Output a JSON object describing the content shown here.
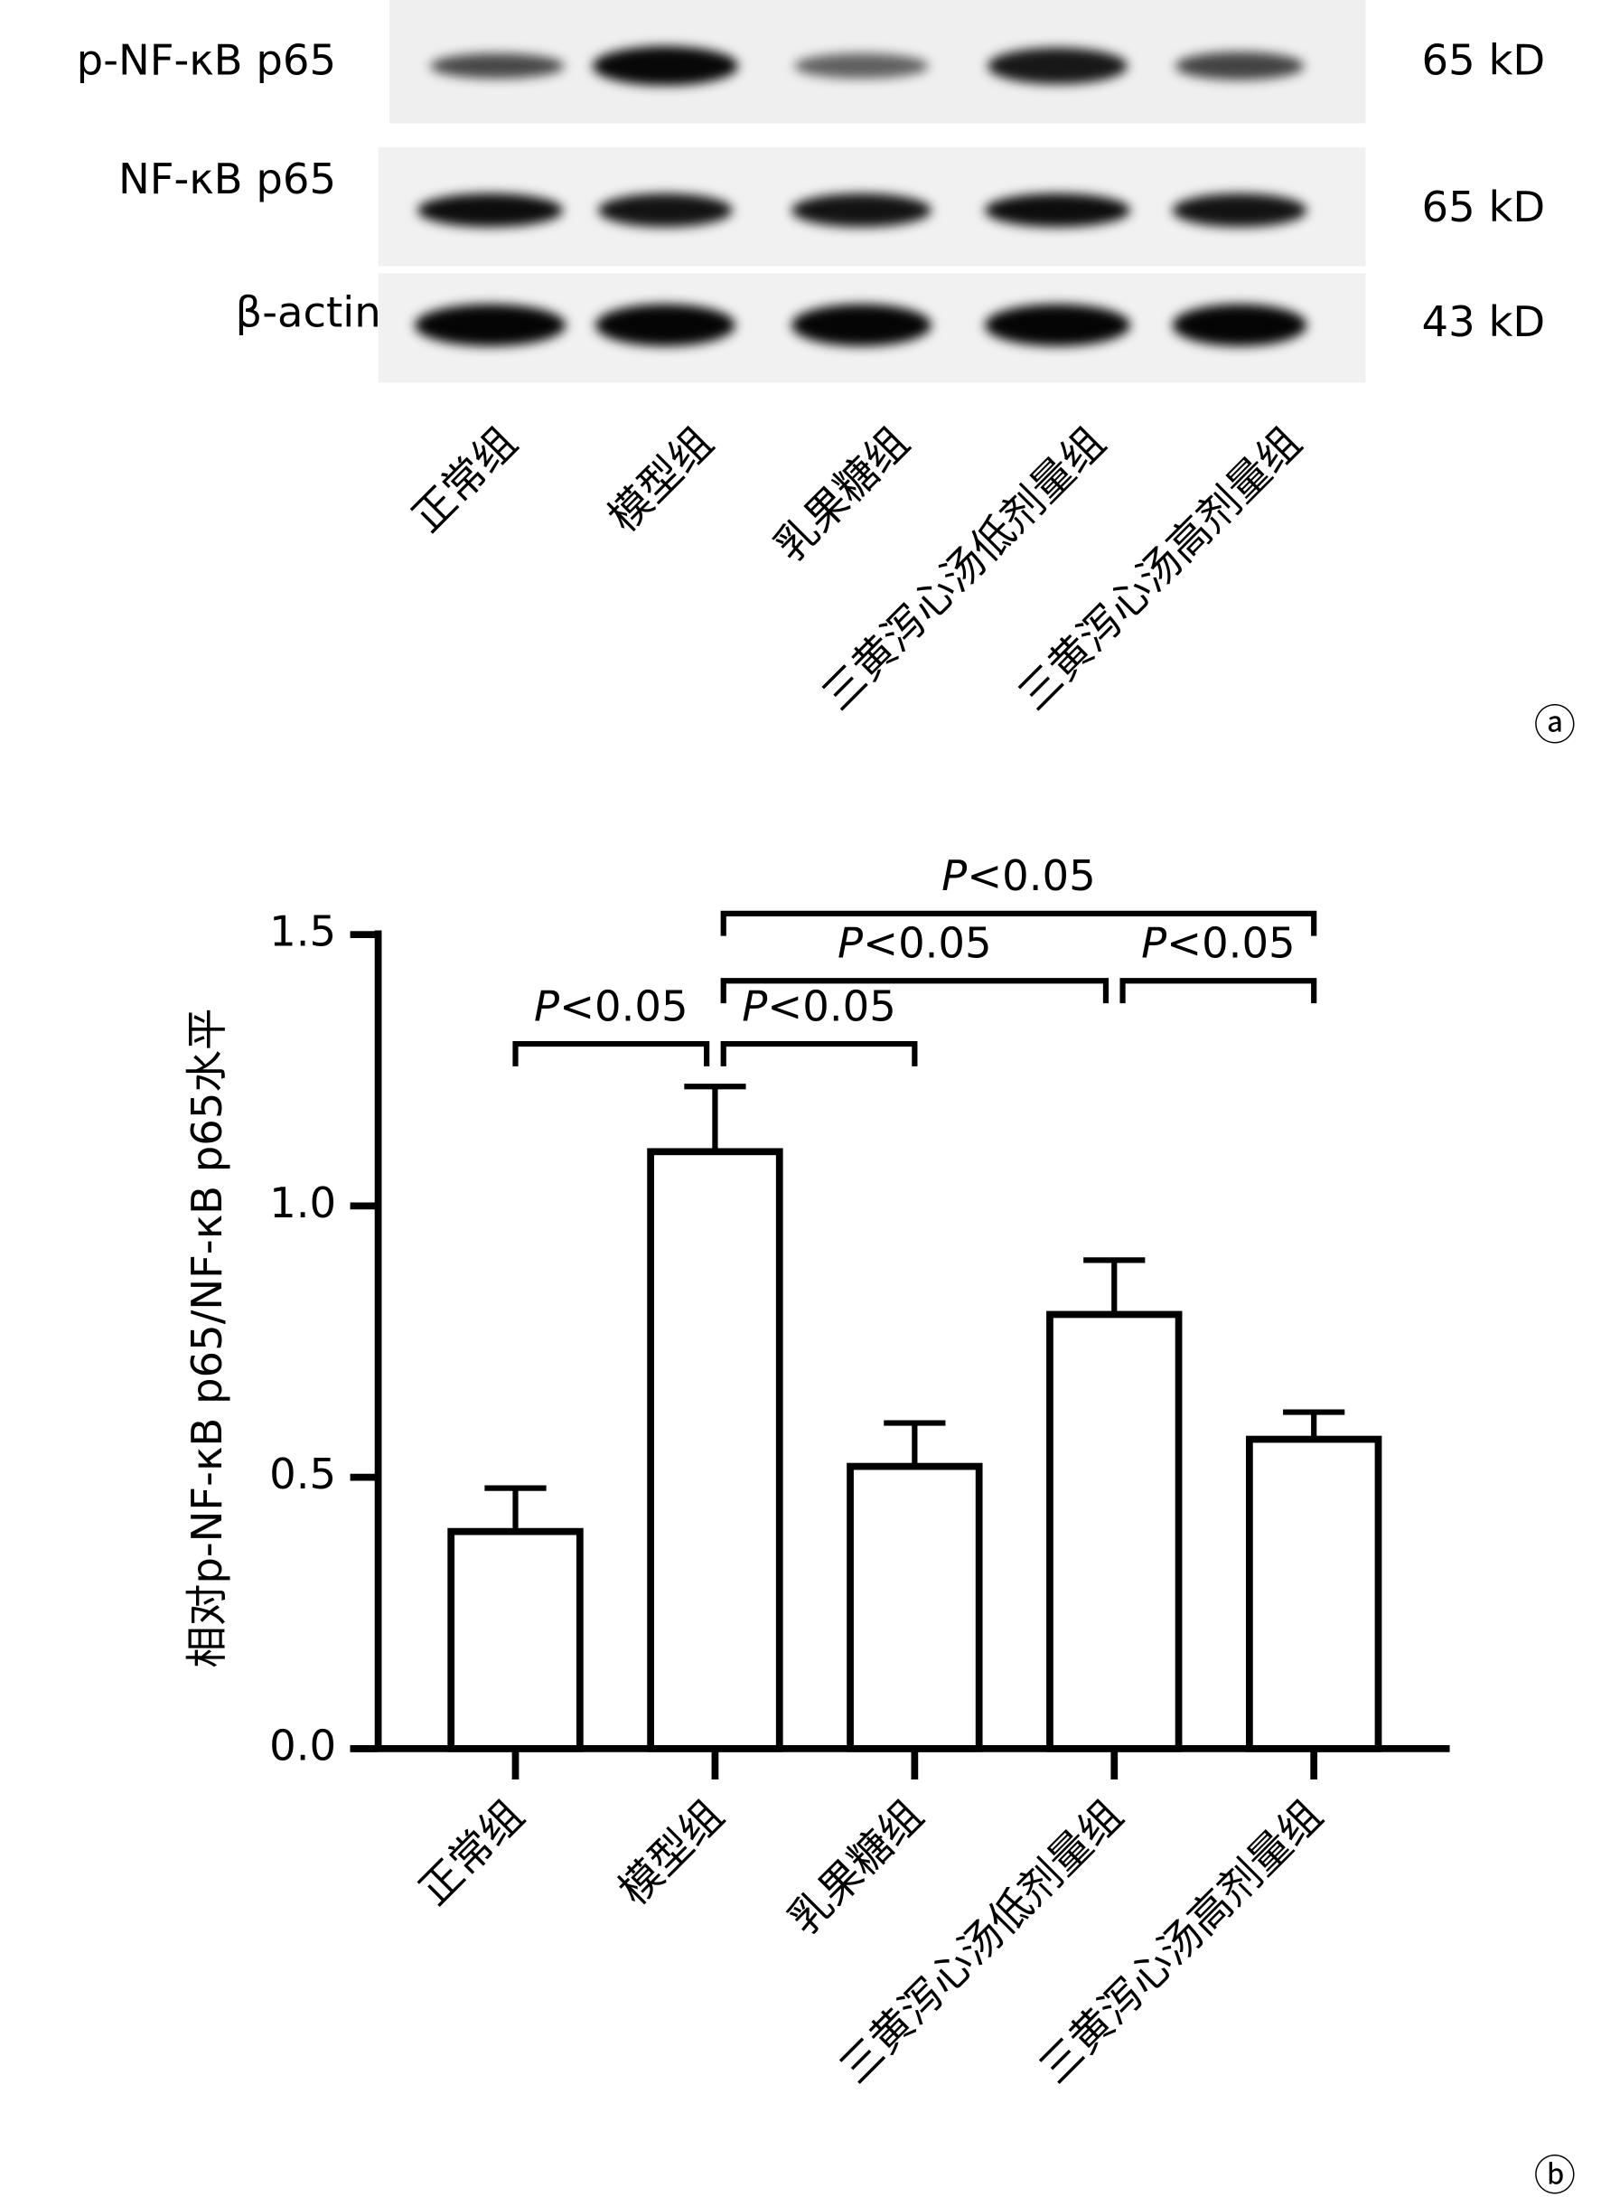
{
  "blot": {
    "rows": [
      {
        "label": "p-NF-κB p65",
        "size": "65 kD"
      },
      {
        "label": "NF-κB p65",
        "size": "65 kD"
      },
      {
        "label": "β-actin",
        "size": "43 kD"
      }
    ],
    "lanes": [
      "正常组",
      "模型组",
      "乳果糖组",
      "三黄泻心汤低剂量组",
      "三黄泻心汤高剂量组"
    ],
    "panel_label": "ⓐ"
  },
  "chart_data": {
    "type": "bar",
    "categories": [
      "正常组",
      "模型组",
      "乳果糖组",
      "三黄泻心汤低剂量组",
      "三黄泻心汤高剂量组"
    ],
    "values": [
      0.4,
      1.1,
      0.52,
      0.8,
      0.57
    ],
    "errors": [
      0.08,
      0.12,
      0.08,
      0.1,
      0.05
    ],
    "color": "#ffffff",
    "ylabel": "相对p-NF-κB p65/NF-κB p65水平",
    "ylim": [
      0,
      1.5
    ],
    "yticks": [
      {
        "value": 0,
        "label": "0.0"
      },
      0.5,
      {
        "value": 1,
        "label": "1.0"
      },
      1.5
    ],
    "comparisons": [
      {
        "between": [
          "正常组",
          "模型组"
        ],
        "label": "P<0.05"
      },
      {
        "between": [
          "模型组",
          "乳果糖组"
        ],
        "label": "P<0.05"
      },
      {
        "between": [
          "模型组",
          "三黄泻心汤低剂量组"
        ],
        "label": "P<0.05"
      },
      {
        "between": [
          "三黄泻心汤低剂量组",
          "三黄泻心汤高剂量组"
        ],
        "label": "P<0.05"
      },
      {
        "between": [
          "模型组",
          "三黄泻心汤高剂量组"
        ],
        "label": "P<0.05"
      }
    ],
    "panel_label": "ⓑ"
  }
}
